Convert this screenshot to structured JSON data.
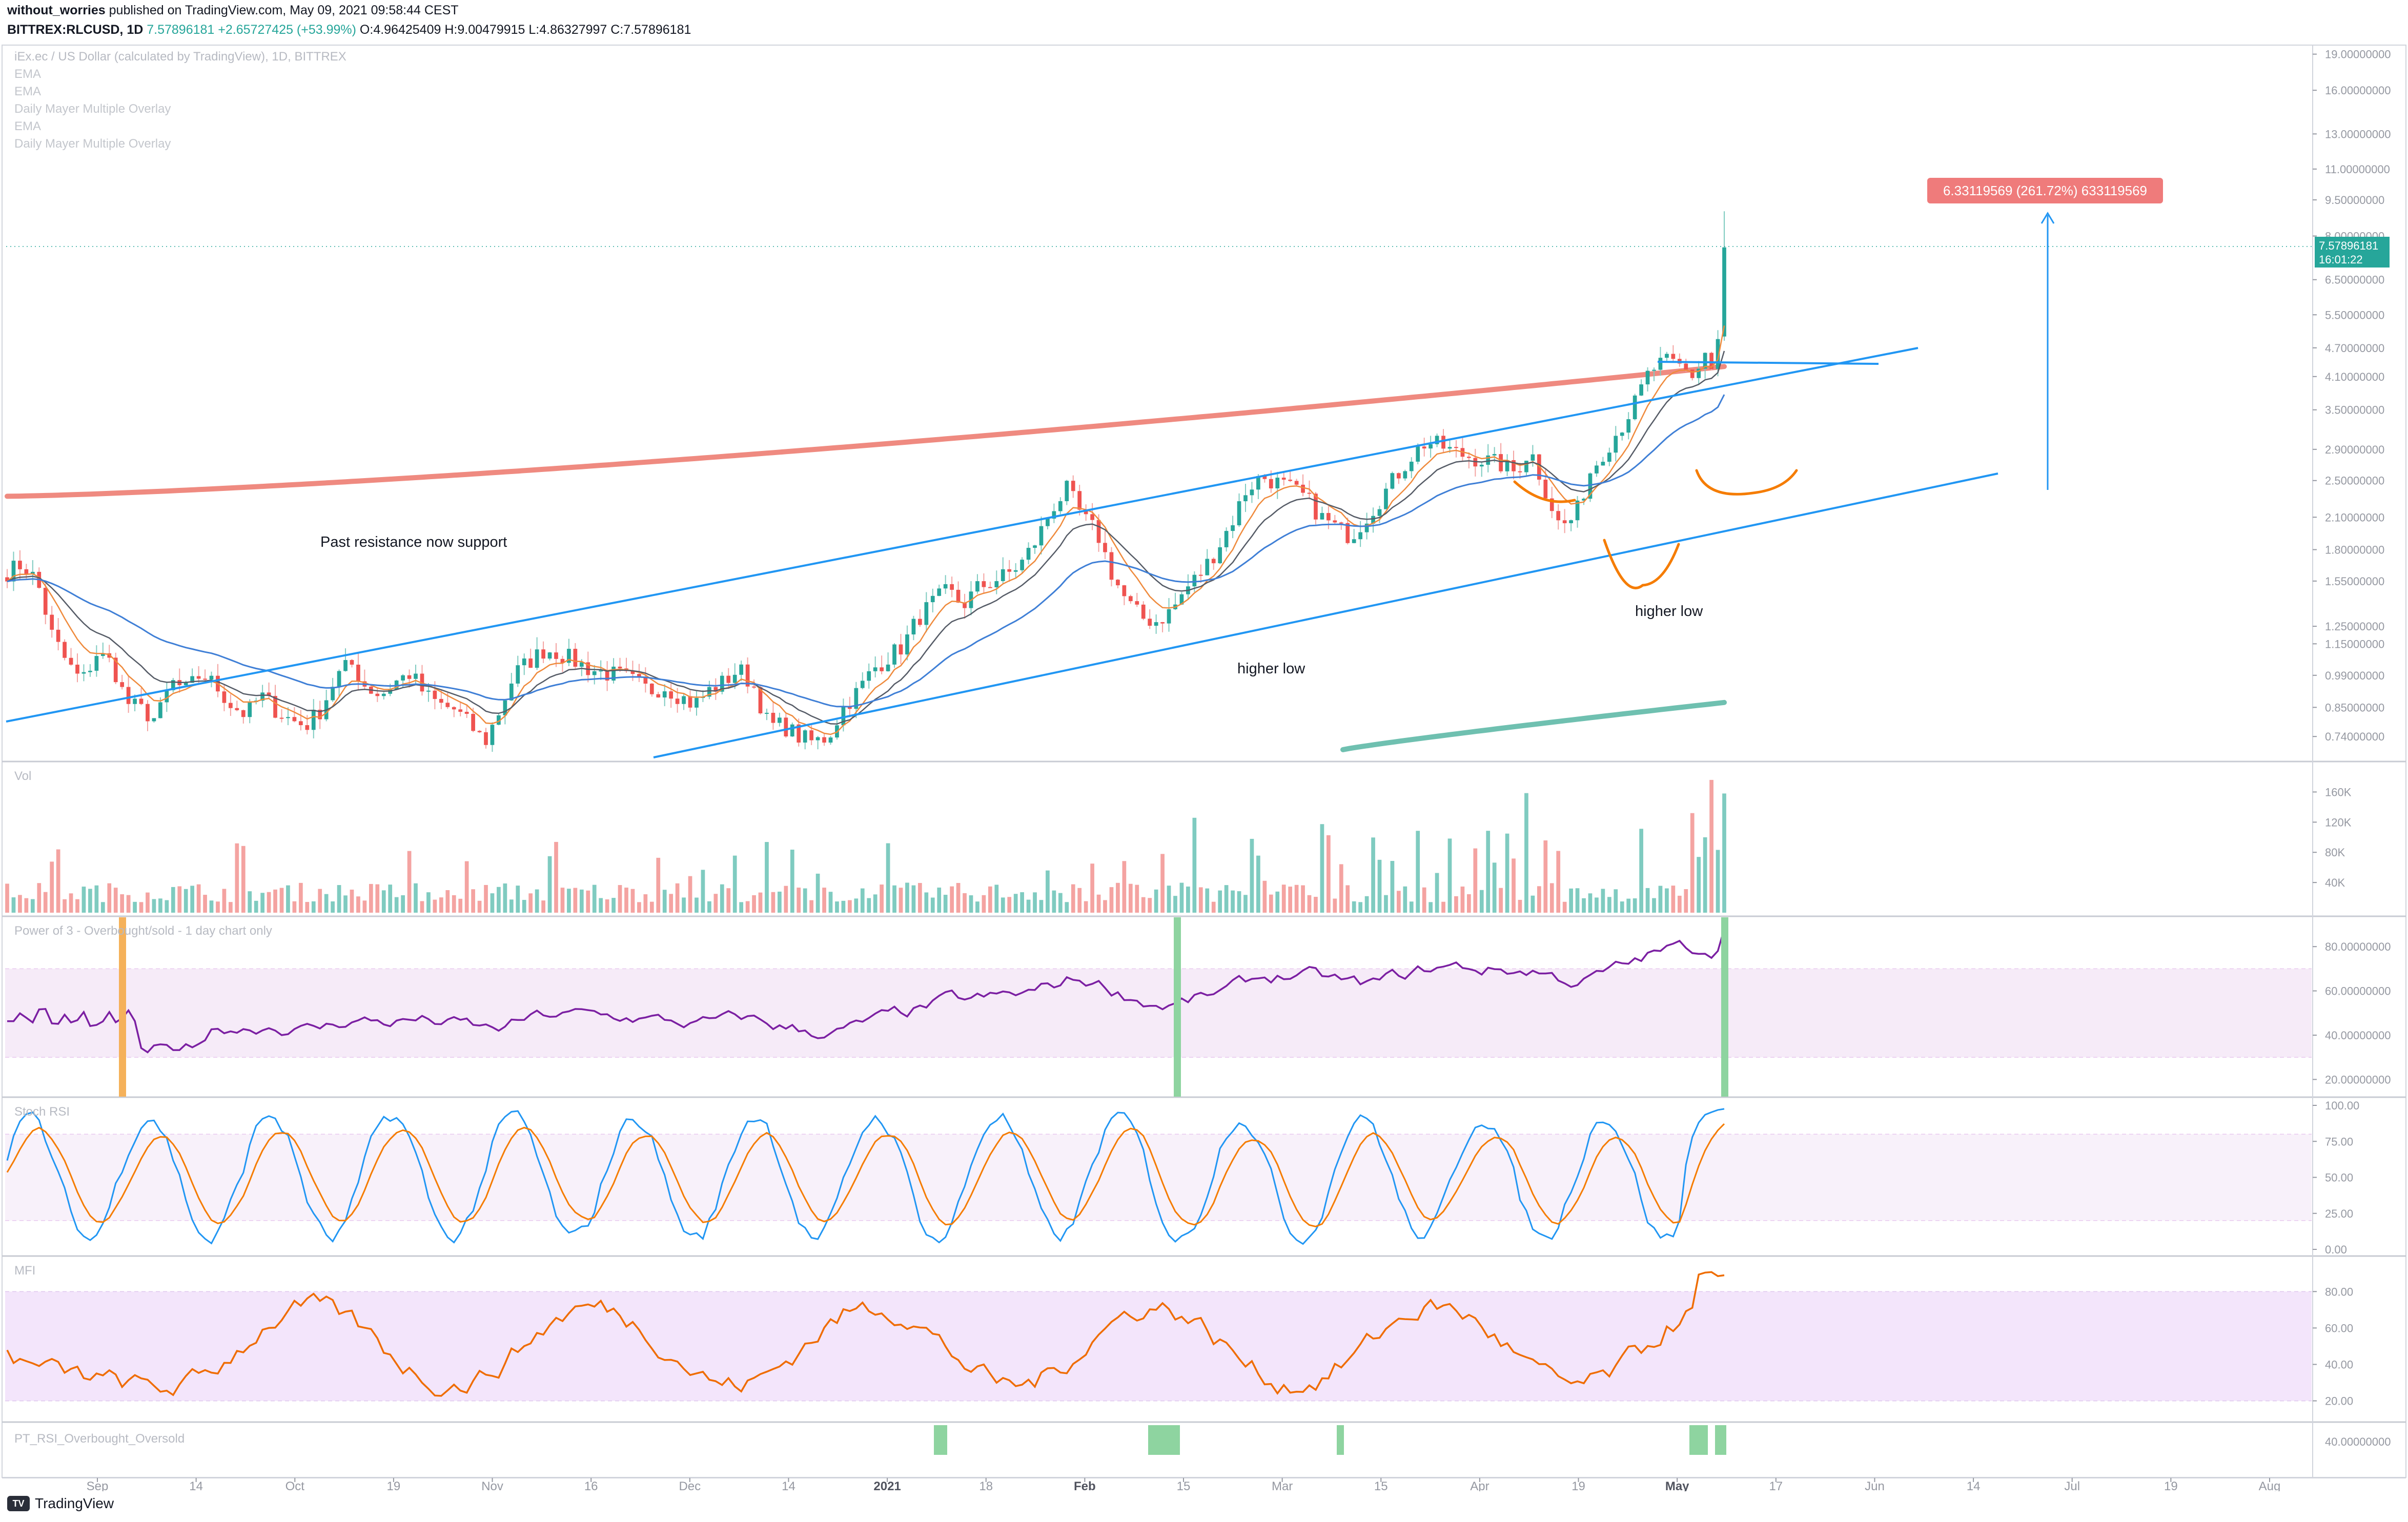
{
  "header": {
    "author": "without_worries",
    "published": "published on TradingView.com, May 09, 2021 09:58:44 CEST",
    "symbol": "BITTREX:RLCUSD, 1D",
    "last": "7.57896181",
    "change": "+2.65727425 (+53.99%)",
    "o": "O:4.96425409",
    "h": "H:9.00479915",
    "l": "L:4.86327997",
    "c": "C:7.57896181"
  },
  "footer": {
    "brand": "TradingView",
    "brand_icon": "tradingview-logo-icon"
  },
  "colors": {
    "up": "#26a69a",
    "down": "#ef5350",
    "up_light": "#7fcbc0",
    "down_light": "#f4a3a1",
    "trendline": "#2196f3",
    "mayer": "#ef8a80",
    "mayer_low": "#6fc0b0",
    "orange_curve": "#f57c00",
    "power_line": "#7b1fa2",
    "power_band": "#f6ebf8",
    "stoch_k": "#2196f3",
    "stoch_d": "#f57c00",
    "mfi_line": "#ef6c00",
    "mfi_band": "#f3e5fb",
    "signal_green": "#8ed4a0",
    "signal_orange": "#f5b15a",
    "label_red": "#ef7b7b",
    "price_badge": "#26a69a"
  },
  "chart_data": [
    {
      "type": "candlestick",
      "title": "iEx.ec / US Dollar (calculated by TradingView), 1D, BITTREX",
      "overlays": [
        "EMA",
        "EMA",
        "Daily Mayer Multiple Overlay",
        "EMA",
        "Daily Mayer Multiple Overlay"
      ],
      "scale": "log",
      "y_ticks": [
        "19.00000000",
        "16.00000000",
        "13.00000000",
        "11.00000000",
        "9.50000000",
        "8.00000000",
        "6.50000000",
        "5.50000000",
        "4.70000000",
        "4.10000000",
        "3.50000000",
        "2.90000000",
        "2.50000000",
        "2.10000000",
        "1.80000000",
        "1.55000000",
        "1.25000000",
        "1.15000000",
        "0.99000000",
        "0.85000000",
        "0.74000000"
      ],
      "last_price": "7.57896181",
      "countdown": "16:01:22",
      "measure_label": "6.33119569 (261.72%) 633119569",
      "annotations": [
        "Past resistance now support",
        "higher low",
        "higher low"
      ],
      "approx_close_series_start": "2020-08-20",
      "approx_closes": [
        1.62,
        1.68,
        1.55,
        1.2,
        1.05,
        0.96,
        1.1,
        1.05,
        0.87,
        0.84,
        0.8,
        0.96,
        0.92,
        1.0,
        0.94,
        0.86,
        0.82,
        0.9,
        0.84,
        0.8,
        0.78,
        0.84,
        0.98,
        1.05,
        0.94,
        0.9,
        0.96,
        1.0,
        0.9,
        0.86,
        0.84,
        0.78,
        0.72,
        0.84,
        1.0,
        1.06,
        1.12,
        1.1,
        1.06,
        1.02,
        1.0,
        0.99,
        0.96,
        0.92,
        0.94,
        0.9,
        0.86,
        0.92,
        0.96,
        1.02,
        0.94,
        0.78,
        0.78,
        0.74,
        0.72,
        0.74,
        0.85,
        0.92,
        1.02,
        1.08,
        1.14,
        1.3,
        1.4,
        1.48,
        1.38,
        1.5,
        1.55,
        1.6,
        1.7,
        1.9,
        2.2,
        2.4,
        2.1,
        1.95,
        1.6,
        1.4,
        1.3,
        1.28,
        1.35,
        1.5,
        1.62,
        1.8,
        2.05,
        2.4,
        2.55,
        2.48,
        2.4,
        2.3,
        2.1,
        2.0,
        1.92,
        2.1,
        2.3,
        2.55,
        2.8,
        3.0,
        2.95,
        2.85,
        2.8,
        2.75,
        2.7,
        2.6,
        2.9,
        2.4,
        2.0,
        2.1,
        2.6,
        2.9,
        3.2,
        3.6,
        4.2,
        4.4,
        4.3,
        4.1,
        4.8,
        7.58
      ]
    },
    {
      "type": "bar",
      "title": "Vol",
      "y_ticks": [
        "160K",
        "120K",
        "80K",
        "40K"
      ]
    },
    {
      "type": "line",
      "title": "Power of 3 - Overbought/sold - 1 day chart only",
      "y_ticks": [
        "80.00000000",
        "60.00000000",
        "40.00000000",
        "20.00000000"
      ],
      "band": [
        30,
        70
      ]
    },
    {
      "type": "line",
      "title": "Stoch RSI",
      "y_ticks": [
        "100.00",
        "75.00",
        "50.00",
        "25.00",
        "0.00"
      ],
      "band": [
        20,
        80
      ]
    },
    {
      "type": "line",
      "title": "MFI",
      "y_ticks": [
        "80.00",
        "60.00",
        "40.00",
        "20.00"
      ],
      "band": [
        20,
        80
      ]
    },
    {
      "type": "bar",
      "title": "PT_RSI_Overbought_Oversold",
      "y_ticks": [
        "40.00000000"
      ]
    }
  ],
  "x_axis": {
    "ticks": [
      "Sep",
      "14",
      "Oct",
      "19",
      "Nov",
      "16",
      "Dec",
      "14",
      "2021",
      "18",
      "Feb",
      "15",
      "Mar",
      "15",
      "Apr",
      "19",
      "May",
      "17",
      "Jun",
      "14",
      "Jul",
      "19",
      "Aug"
    ],
    "bold": [
      "2021",
      "Feb",
      "May"
    ]
  }
}
